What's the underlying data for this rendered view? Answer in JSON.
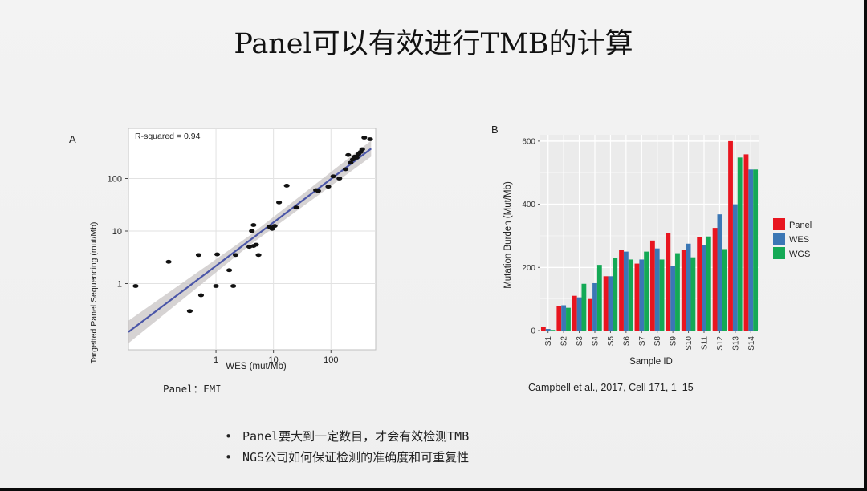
{
  "title": "Panel可以有效进行TMB的计算",
  "chart_data": [
    {
      "type": "scatter",
      "panel_label": "A",
      "annotation": "R-squared = 0.94",
      "xlabel": "WES (mut/Mb)",
      "ylabel": "Targetted Panel Sequencing (mut/Mb)",
      "x_scale": "log",
      "y_scale": "log",
      "x_ticks": [
        "1",
        "10",
        "100"
      ],
      "y_ticks": [
        "1",
        "10",
        "100"
      ],
      "xlim": [
        0.03,
        600
      ],
      "ylim": [
        0.055,
        900
      ],
      "grid": true,
      "points": [
        [
          0.04,
          0.9
        ],
        [
          0.15,
          2.6
        ],
        [
          0.35,
          0.3
        ],
        [
          0.5,
          3.5
        ],
        [
          0.55,
          0.6
        ],
        [
          1.0,
          0.9
        ],
        [
          1.05,
          3.6
        ],
        [
          1.7,
          1.8
        ],
        [
          2.0,
          0.9
        ],
        [
          2.2,
          3.5
        ],
        [
          3.8,
          5.0
        ],
        [
          4.2,
          10.0
        ],
        [
          4.5,
          13.0
        ],
        [
          4.5,
          5.2
        ],
        [
          5.0,
          5.5
        ],
        [
          5.5,
          3.5
        ],
        [
          8.5,
          12.0
        ],
        [
          9.5,
          11.0
        ],
        [
          10.5,
          12.5
        ],
        [
          12.5,
          35.0
        ],
        [
          17.0,
          73.0
        ],
        [
          25.0,
          28.0
        ],
        [
          55.0,
          60.0
        ],
        [
          60.0,
          58.0
        ],
        [
          90.0,
          70.0
        ],
        [
          110.0,
          110.0
        ],
        [
          140.0,
          100.0
        ],
        [
          180.0,
          150.0
        ],
        [
          200.0,
          280.0
        ],
        [
          220.0,
          200.0
        ],
        [
          240.0,
          230.0
        ],
        [
          260.0,
          260.0
        ],
        [
          280.0,
          250.0
        ],
        [
          300.0,
          290.0
        ],
        [
          330.0,
          320.0
        ],
        [
          350.0,
          360.0
        ],
        [
          380.0,
          600.0
        ],
        [
          480.0,
          560.0
        ]
      ],
      "fit_line": [
        [
          0.03,
          0.12
        ],
        [
          500,
          370
        ]
      ],
      "line_color": "#4a56a8",
      "band_color": "#c8c4c4"
    },
    {
      "type": "bar",
      "panel_label": "B",
      "xlabel": "Sample ID",
      "ylabel": "Mutation Burden (Mut/Mb)",
      "ylim": [
        0,
        620
      ],
      "y_ticks": [
        0,
        200,
        400,
        600
      ],
      "grid": true,
      "legend_position": "right",
      "categories": [
        "S1",
        "S2",
        "S3",
        "S4",
        "S5",
        "S6",
        "S7",
        "S8",
        "S9",
        "S10",
        "S11",
        "S12",
        "S13",
        "S14"
      ],
      "series": [
        {
          "name": "Panel",
          "color": "#e8151f",
          "values": [
            12,
            78,
            110,
            100,
            172,
            255,
            212,
            285,
            308,
            255,
            295,
            325,
            600,
            558
          ]
        },
        {
          "name": "WES",
          "color": "#3b77b5",
          "values": [
            5,
            80,
            105,
            150,
            172,
            250,
            225,
            260,
            205,
            275,
            270,
            368,
            400,
            510
          ]
        },
        {
          "name": "WGS",
          "color": "#14a955",
          "values": [
            2,
            72,
            148,
            208,
            230,
            225,
            250,
            225,
            245,
            232,
            298,
            258,
            548,
            510
          ]
        }
      ]
    }
  ],
  "captions": {
    "left": "Panel：FMI",
    "right": "Campbell et al., 2017, Cell 171, 1–15"
  },
  "bullets": [
    {
      "marker": "•",
      "text": "Panel要大到一定数目，才会有效检测TMB"
    },
    {
      "marker": "•",
      "text": "NGS公司如何保证检测的准确度和可重复性"
    }
  ]
}
